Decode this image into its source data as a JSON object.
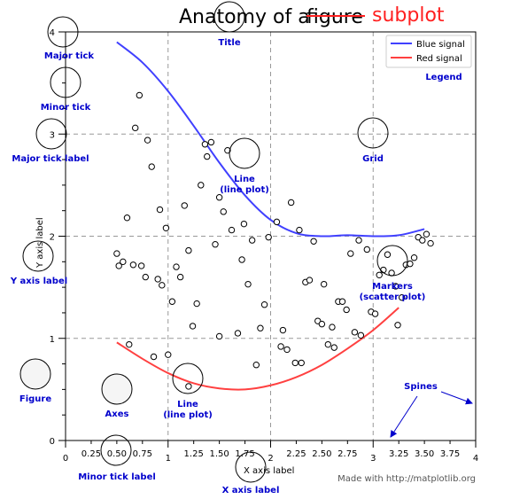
{
  "chart_data": {
    "type": "line",
    "title": "Anatomy of a figure",
    "title_strike": "figure",
    "title_replacement": "subplot",
    "xlabel": "X axis label",
    "ylabel": "Y axis label",
    "xlim": [
      0,
      4
    ],
    "ylim": [
      0,
      4
    ],
    "major_ticks": {
      "x": [
        0,
        1,
        2,
        3,
        4
      ],
      "y": [
        0,
        1,
        2,
        3,
        4
      ]
    },
    "minor_tick_labels_x": [
      "0.25",
      "0.50",
      "0.75",
      "1.25",
      "1.50",
      "1.75",
      "2.25",
      "2.50",
      "2.75",
      "3.25",
      "3.50",
      "3.75"
    ],
    "minor_tick_values_x": [
      0.25,
      0.5,
      0.75,
      1.25,
      1.5,
      1.75,
      2.25,
      2.5,
      2.75,
      3.25,
      3.5,
      3.75
    ],
    "major_tick_labels_x": [
      "0",
      "1",
      "2",
      "3",
      "4"
    ],
    "major_tick_labels_y": [
      "0",
      "1",
      "2",
      "3",
      "4"
    ],
    "minor_ticks_y": [
      0.25,
      0.5,
      0.75,
      1.25,
      1.5,
      1.75,
      2.25,
      2.5,
      2.75,
      3.25,
      3.5,
      3.75
    ],
    "grid": true,
    "legend_position": "top-right",
    "series": [
      {
        "name": "Blue signal",
        "color": "#4040ff",
        "x": [
          0.5,
          0.75,
          1.0,
          1.25,
          1.5,
          1.75,
          2.0,
          2.25,
          2.5,
          2.75,
          3.0,
          3.25,
          3.5
        ],
        "y": [
          3.9,
          3.7,
          3.42,
          3.08,
          2.72,
          2.4,
          2.16,
          2.03,
          2.0,
          2.01,
          2.0,
          2.01,
          2.07
        ]
      },
      {
        "name": "Red signal",
        "color": "#ff4040",
        "x": [
          0.5,
          0.75,
          1.0,
          1.25,
          1.5,
          1.75,
          2.0,
          2.25,
          2.5,
          2.75,
          3.0,
          3.25
        ],
        "y": [
          0.96,
          0.8,
          0.66,
          0.56,
          0.51,
          0.5,
          0.54,
          0.62,
          0.74,
          0.9,
          1.08,
          1.3
        ]
      }
    ],
    "scatter": {
      "name": "Markers",
      "points": [
        [
          0.72,
          3.38
        ],
        [
          0.68,
          3.06
        ],
        [
          0.8,
          2.94
        ],
        [
          0.84,
          2.68
        ],
        [
          0.6,
          2.18
        ],
        [
          0.92,
          2.26
        ],
        [
          0.98,
          2.08
        ],
        [
          0.5,
          1.83
        ],
        [
          0.52,
          1.71
        ],
        [
          0.56,
          1.75
        ],
        [
          0.66,
          1.72
        ],
        [
          0.74,
          1.71
        ],
        [
          0.78,
          1.6
        ],
        [
          0.9,
          1.58
        ],
        [
          0.94,
          1.52
        ],
        [
          1.04,
          1.36
        ],
        [
          1.08,
          1.7
        ],
        [
          1.12,
          1.6
        ],
        [
          1.16,
          2.3
        ],
        [
          1.2,
          1.86
        ],
        [
          1.24,
          1.12
        ],
        [
          1.28,
          1.34
        ],
        [
          1.32,
          2.5
        ],
        [
          1.36,
          2.9
        ],
        [
          1.38,
          2.78
        ],
        [
          1.42,
          2.92
        ],
        [
          1.46,
          1.92
        ],
        [
          1.5,
          2.38
        ],
        [
          1.54,
          2.24
        ],
        [
          1.58,
          2.84
        ],
        [
          1.62,
          2.06
        ],
        [
          1.68,
          1.05
        ],
        [
          1.72,
          1.77
        ],
        [
          1.74,
          2.12
        ],
        [
          1.78,
          1.53
        ],
        [
          1.82,
          1.96
        ],
        [
          1.86,
          0.74
        ],
        [
          1.9,
          1.1
        ],
        [
          1.94,
          1.33
        ],
        [
          1.98,
          1.99
        ],
        [
          2.06,
          2.14
        ],
        [
          2.1,
          0.92
        ],
        [
          2.12,
          1.08
        ],
        [
          2.16,
          0.89
        ],
        [
          2.2,
          2.33
        ],
        [
          2.24,
          0.76
        ],
        [
          2.28,
          2.06
        ],
        [
          2.3,
          0.76
        ],
        [
          2.34,
          1.55
        ],
        [
          2.38,
          1.57
        ],
        [
          2.42,
          1.95
        ],
        [
          2.46,
          1.17
        ],
        [
          2.5,
          1.14
        ],
        [
          2.52,
          1.53
        ],
        [
          2.56,
          0.94
        ],
        [
          2.6,
          1.11
        ],
        [
          2.62,
          0.91
        ],
        [
          2.66,
          1.36
        ],
        [
          2.7,
          1.36
        ],
        [
          2.74,
          1.28
        ],
        [
          2.78,
          1.83
        ],
        [
          2.82,
          1.06
        ],
        [
          2.86,
          1.96
        ],
        [
          2.88,
          1.03
        ],
        [
          2.94,
          1.87
        ],
        [
          2.98,
          1.26
        ],
        [
          3.02,
          1.24
        ],
        [
          3.06,
          1.62
        ],
        [
          3.1,
          1.67
        ],
        [
          3.14,
          1.82
        ],
        [
          3.18,
          1.64
        ],
        [
          3.22,
          1.51
        ],
        [
          3.24,
          1.13
        ],
        [
          3.28,
          1.4
        ],
        [
          3.32,
          1.72
        ],
        [
          3.36,
          1.73
        ],
        [
          3.4,
          1.79
        ],
        [
          3.44,
          1.99
        ],
        [
          3.48,
          1.96
        ],
        [
          3.52,
          2.02
        ],
        [
          3.56,
          1.93
        ],
        [
          0.62,
          0.94
        ],
        [
          0.86,
          0.82
        ],
        [
          1.0,
          0.84
        ],
        [
          1.5,
          1.02
        ],
        [
          1.2,
          0.53
        ]
      ]
    }
  },
  "annotations": {
    "major_tick": "Major tick",
    "minor_tick": "Minor tick",
    "major_tick_label": "Major tick label",
    "y_axis_label": "Y axis label",
    "figure": "Figure",
    "axes": "Axes",
    "minor_tick_label": "Minor tick label",
    "x_axis_label": "X axis label",
    "title": "Title",
    "legend": "Legend",
    "grid": "Grid",
    "line_plot_1": "Line",
    "line_plot_1b": "(line plot)",
    "line_plot_2": "Line",
    "line_plot_2b": "(line plot)",
    "markers": "Markers",
    "markers_b": "(scatter plot)",
    "spines": "Spines"
  },
  "footer": "Made with http://matplotlib.org"
}
